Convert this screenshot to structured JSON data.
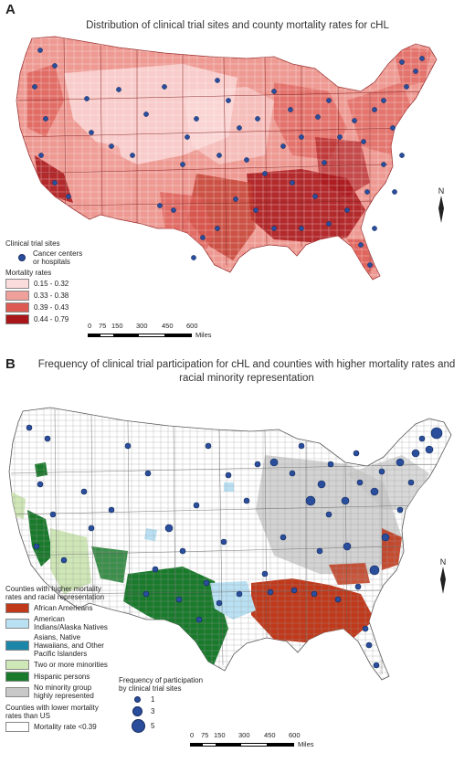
{
  "panel_a": {
    "letter": "A",
    "title": "Distribution of clinical trial sites and county mortality rates for cHL",
    "legend": {
      "sites_heading": "Clinical trial sites",
      "sites_item": "Cancer centers or hospitals",
      "mortality_heading": "Mortality rates",
      "classes": [
        {
          "label": "0.15 - 0.32",
          "color": "#fbdcdc"
        },
        {
          "label": "0.33 - 0.38",
          "color": "#f0a09a"
        },
        {
          "label": "0.39 - 0.43",
          "color": "#dc5a52"
        },
        {
          "label": "0.44 - 0.79",
          "color": "#a8161a"
        }
      ]
    }
  },
  "panel_b": {
    "letter": "B",
    "title": "Frequency of clinical trial participation for cHL and counties with higher mortality rates and racial minority representation",
    "legend": {
      "heading": "Counties with higher mortality rates and racial representation",
      "classes": [
        {
          "label": "African Americans",
          "color": "#c0391b"
        },
        {
          "label": "American Indians/Alaska Natives",
          "color": "#b9e1f3"
        },
        {
          "label": "Asians, Native Hawaiians, and Other Pacific Islanders",
          "color": "#1b86a8"
        },
        {
          "label": "Two or more minorities",
          "color": "#cfe7b6"
        },
        {
          "label": "Hispanic persons",
          "color": "#1a7a2c"
        },
        {
          "label": "No minority group highly represented",
          "color": "#c8c8c8"
        }
      ],
      "lower_heading": "Counties with lower mortality rates than US",
      "lower_item": {
        "label": "Mortality rate <0.39",
        "color": "#ffffff"
      },
      "frequency_heading": "Frequency of participation by clinical trial sites",
      "frequency_items": [
        "1",
        "3",
        "5"
      ]
    }
  },
  "scale": {
    "ticks": [
      "0",
      "75",
      "150",
      "300",
      "450",
      "600"
    ],
    "unit": "Miles"
  },
  "north_label": "N",
  "colors": {
    "site_dot": "#2a4d9c",
    "land_base_a": "#ee9a93",
    "land_base_b": "#ffffff"
  }
}
